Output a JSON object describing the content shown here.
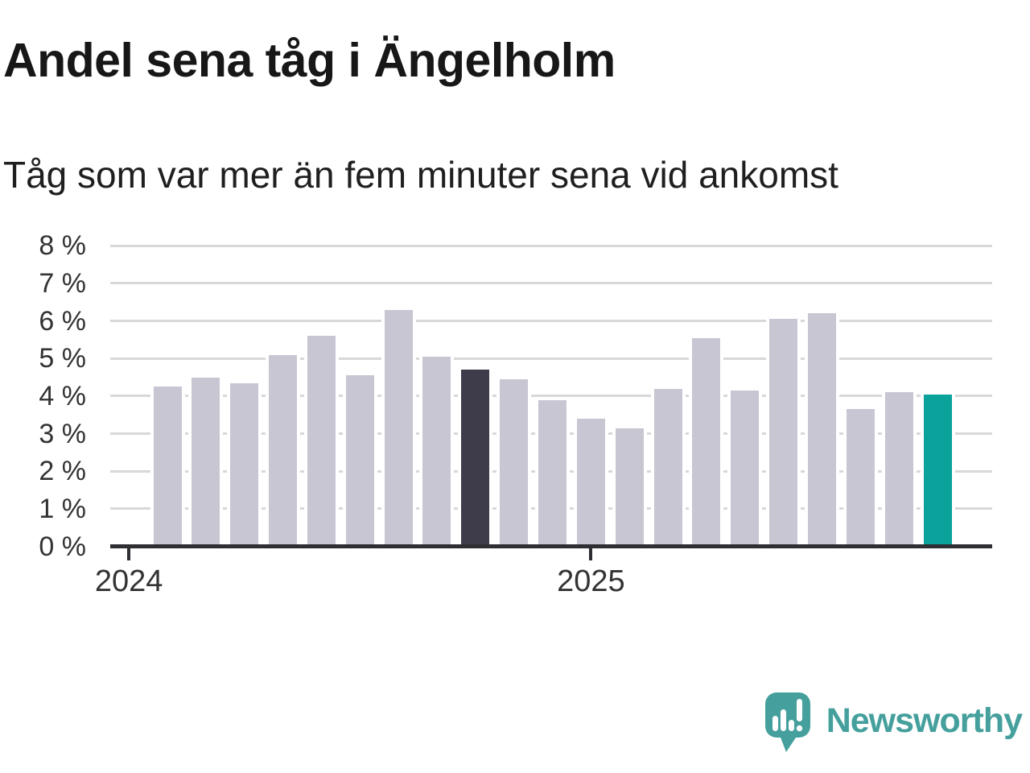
{
  "title": "Andel sena tåg i Ängelholm",
  "subtitle": "Tåg som var mer än fem minuter sena vid ankomst",
  "chart_data": {
    "type": "bar",
    "title": "Andel sena tåg i Ängelholm",
    "subtitle": "Tåg som var mer än fem minuter sena vid ankomst",
    "unit": "%",
    "categories": [
      "2024-01",
      "2024-02",
      "2024-03",
      "2024-04",
      "2024-05",
      "2024-06",
      "2024-07",
      "2024-08",
      "2024-09",
      "2024-10",
      "2024-11",
      "2024-12",
      "2025-01",
      "2025-02",
      "2025-03",
      "2025-04",
      "2025-05",
      "2025-06",
      "2025-07",
      "2025-08",
      "2025-09"
    ],
    "values": [
      4.25,
      4.5,
      4.35,
      5.1,
      5.6,
      4.55,
      6.3,
      5.05,
      4.7,
      4.45,
      3.9,
      3.4,
      3.15,
      4.2,
      5.55,
      4.15,
      6.05,
      6.2,
      3.65,
      4.1,
      4.05
    ],
    "ylim": [
      0,
      8
    ],
    "ytick_labels": [
      "0 %",
      "1 %",
      "2 %",
      "3 %",
      "4 %",
      "5 %",
      "6 %",
      "7 %",
      "8 %"
    ],
    "xticks": [
      {
        "label": "2024",
        "slot": 0
      },
      {
        "label": "2025",
        "slot": 12
      }
    ],
    "grid": true,
    "legend_position": "none",
    "highlights": {
      "dark_index": 8,
      "current_index": 20,
      "note": "dark = same month previous year, teal = latest month"
    },
    "colors": {
      "bar": "#c8c6d2",
      "bar_dark": "#3e3c4a",
      "bar_current": "#0aa29a",
      "grid": "#d8d8d8",
      "axis": "#2e2e33",
      "tick_label": "#333333",
      "background": "#ffffff"
    }
  },
  "branding": {
    "logo_text": "Newsworthy",
    "logo_color": "#45a09d",
    "logo_icon": "speech-bubble-bar-chart-exclamation"
  }
}
